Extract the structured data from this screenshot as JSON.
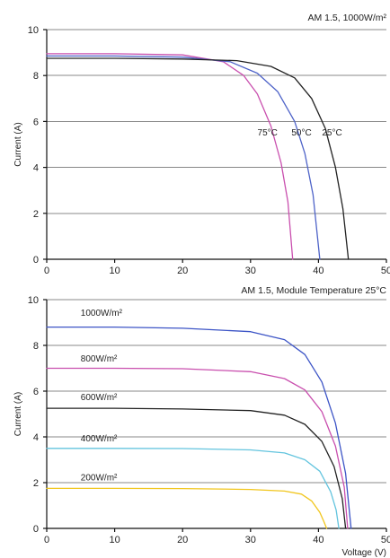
{
  "chart_data": [
    {
      "type": "line",
      "title": "AM 1.5, 1000W/m²",
      "xlabel": "",
      "ylabel": "Current (A)",
      "xlim": [
        0,
        50
      ],
      "ylim": [
        0,
        10
      ],
      "x_ticks": [
        "0",
        "10",
        "20",
        "30",
        "40",
        "50"
      ],
      "y_ticks": [
        "0",
        "2",
        "4",
        "6",
        "8",
        "10"
      ],
      "grid": "horizontal",
      "annotations": [
        {
          "text": "75°C",
          "x": 32.5,
          "y": 5.4
        },
        {
          "text": "50°C",
          "x": 37.5,
          "y": 5.4
        },
        {
          "text": "25°C",
          "x": 42.0,
          "y": 5.4
        }
      ],
      "series": [
        {
          "name": "",
          "label": "",
          "color": "#c94fae",
          "points": [
            [
              0,
              8.95
            ],
            [
              10,
              8.95
            ],
            [
              20,
              8.9
            ],
            [
              26,
              8.6
            ],
            [
              29,
              8.0
            ],
            [
              31,
              7.2
            ],
            [
              33,
              5.8
            ],
            [
              34.5,
              4.2
            ],
            [
              35.5,
              2.5
            ],
            [
              36.2,
              0
            ]
          ]
        },
        {
          "name": "",
          "label": "",
          "color": "#4e63c8",
          "points": [
            [
              0,
              8.85
            ],
            [
              10,
              8.85
            ],
            [
              20,
              8.8
            ],
            [
              27,
              8.6
            ],
            [
              31,
              8.1
            ],
            [
              34,
              7.3
            ],
            [
              36.5,
              6.0
            ],
            [
              38,
              4.6
            ],
            [
              39.2,
              2.8
            ],
            [
              40.2,
              0
            ]
          ]
        },
        {
          "name": "",
          "label": "",
          "color": "#222222",
          "points": [
            [
              0,
              8.75
            ],
            [
              10,
              8.75
            ],
            [
              20,
              8.72
            ],
            [
              28,
              8.65
            ],
            [
              33,
              8.4
            ],
            [
              36.5,
              7.9
            ],
            [
              39,
              7.0
            ],
            [
              41,
              5.7
            ],
            [
              42.5,
              4.0
            ],
            [
              43.6,
              2.2
            ],
            [
              44.4,
              0
            ]
          ]
        }
      ]
    },
    {
      "type": "line",
      "title": "AM 1.5, Module Temperature 25°C",
      "xlabel": "Voltage (V)",
      "ylabel": "Current (A)",
      "xlim": [
        0,
        50
      ],
      "ylim": [
        0,
        10
      ],
      "x_ticks": [
        "0",
        "10",
        "20",
        "30",
        "40",
        "50"
      ],
      "y_ticks": [
        "0",
        "2",
        "4",
        "6",
        "8",
        "10"
      ],
      "grid": "horizontal",
      "series": [
        {
          "name": "1000W/m²",
          "label": "1000W/m²",
          "label_pos": [
            5,
            9.3
          ],
          "color": "#3c54c6",
          "points": [
            [
              0,
              8.8
            ],
            [
              10,
              8.8
            ],
            [
              20,
              8.75
            ],
            [
              30,
              8.6
            ],
            [
              35,
              8.25
            ],
            [
              38,
              7.6
            ],
            [
              40.5,
              6.4
            ],
            [
              42.5,
              4.6
            ],
            [
              44,
              2.4
            ],
            [
              44.8,
              0
            ]
          ]
        },
        {
          "name": "800W/m²",
          "label": "800W/m²",
          "label_pos": [
            5,
            7.3
          ],
          "color": "#c94fae",
          "points": [
            [
              0,
              7.0
            ],
            [
              10,
              7.0
            ],
            [
              20,
              6.98
            ],
            [
              30,
              6.85
            ],
            [
              35,
              6.55
            ],
            [
              38,
              6.05
            ],
            [
              40.5,
              5.1
            ],
            [
              42.5,
              3.6
            ],
            [
              43.8,
              1.8
            ],
            [
              44.3,
              0
            ]
          ]
        },
        {
          "name": "600W/m²",
          "label": "600W/m²",
          "label_pos": [
            5,
            5.6
          ],
          "color": "#222222",
          "points": [
            [
              0,
              5.25
            ],
            [
              10,
              5.25
            ],
            [
              20,
              5.22
            ],
            [
              30,
              5.15
            ],
            [
              35,
              4.95
            ],
            [
              38,
              4.55
            ],
            [
              40.5,
              3.8
            ],
            [
              42.3,
              2.7
            ],
            [
              43.5,
              1.3
            ],
            [
              44.0,
              0
            ]
          ]
        },
        {
          "name": "400W/m²",
          "label": "400W/m²",
          "label_pos": [
            5,
            3.8
          ],
          "color": "#63c4de",
          "points": [
            [
              0,
              3.5
            ],
            [
              10,
              3.5
            ],
            [
              20,
              3.49
            ],
            [
              30,
              3.43
            ],
            [
              35,
              3.3
            ],
            [
              38,
              3.0
            ],
            [
              40.2,
              2.5
            ],
            [
              41.8,
              1.6
            ],
            [
              42.6,
              0.8
            ],
            [
              43.0,
              0
            ]
          ]
        },
        {
          "name": "200W/m²",
          "label": "200W/m²",
          "label_pos": [
            5,
            2.1
          ],
          "color": "#f1c61d",
          "points": [
            [
              0,
              1.75
            ],
            [
              10,
              1.75
            ],
            [
              20,
              1.74
            ],
            [
              30,
              1.7
            ],
            [
              35,
              1.63
            ],
            [
              37.5,
              1.5
            ],
            [
              39.0,
              1.2
            ],
            [
              40.2,
              0.7
            ],
            [
              40.8,
              0.3
            ],
            [
              41.2,
              0
            ]
          ]
        }
      ]
    }
  ]
}
